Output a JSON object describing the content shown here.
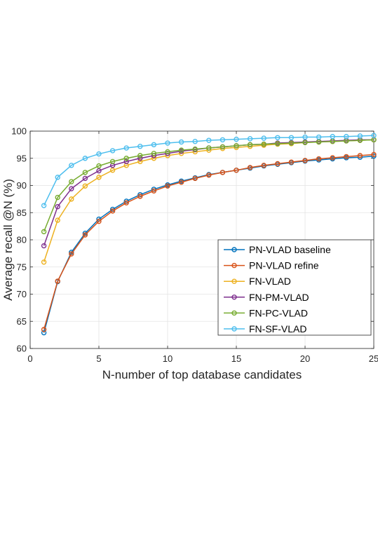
{
  "chart_data": {
    "type": "line",
    "xlabel": "N-number of top database candidates",
    "ylabel": "Average recall @N (%)",
    "xlim": [
      0,
      25
    ],
    "ylim": [
      60,
      100
    ],
    "xticks": [
      0,
      5,
      10,
      15,
      20,
      25
    ],
    "yticks": [
      60,
      65,
      70,
      75,
      80,
      85,
      90,
      95,
      100
    ],
    "grid": true,
    "legend_position": "lower-right",
    "marker": "circle",
    "x": [
      1,
      2,
      3,
      4,
      5,
      6,
      7,
      8,
      9,
      10,
      11,
      12,
      13,
      14,
      15,
      16,
      17,
      18,
      19,
      20,
      21,
      22,
      23,
      24,
      25
    ],
    "series": [
      {
        "name": "PN-VLAD baseline",
        "color": "#0072BD",
        "values": [
          62.9,
          72.3,
          77.7,
          81.2,
          83.8,
          85.6,
          87.1,
          88.3,
          89.3,
          90.1,
          90.8,
          91.4,
          92.0,
          92.4,
          92.8,
          93.2,
          93.6,
          93.9,
          94.2,
          94.5,
          94.7,
          94.9,
          95.1,
          95.2,
          95.4
        ]
      },
      {
        "name": "PN-VLAD refine",
        "color": "#D95319",
        "values": [
          63.5,
          72.4,
          77.4,
          80.9,
          83.4,
          85.3,
          86.8,
          88.0,
          89.0,
          89.9,
          90.6,
          91.3,
          91.9,
          92.4,
          92.8,
          93.3,
          93.7,
          94.0,
          94.3,
          94.6,
          94.9,
          95.1,
          95.3,
          95.5,
          95.7
        ]
      },
      {
        "name": "FN-VLAD",
        "color": "#EDB120",
        "values": [
          75.9,
          83.6,
          87.5,
          89.9,
          91.5,
          92.8,
          93.7,
          94.4,
          95.0,
          95.5,
          95.9,
          96.2,
          96.5,
          96.8,
          97.0,
          97.2,
          97.4,
          97.6,
          97.7,
          97.9,
          98.0,
          98.1,
          98.2,
          98.3,
          98.4
        ]
      },
      {
        "name": "FN-PM-VLAD",
        "color": "#7E2F8E",
        "values": [
          78.9,
          86.1,
          89.4,
          91.3,
          92.7,
          93.7,
          94.4,
          95.0,
          95.5,
          95.9,
          96.3,
          96.6,
          96.9,
          97.1,
          97.3,
          97.5,
          97.6,
          97.8,
          97.9,
          98.0,
          98.1,
          98.2,
          98.3,
          98.4,
          98.4
        ]
      },
      {
        "name": "FN-PC-VLAD",
        "color": "#77AC30",
        "values": [
          81.5,
          87.8,
          90.7,
          92.4,
          93.6,
          94.4,
          95.0,
          95.5,
          95.9,
          96.2,
          96.5,
          96.7,
          96.9,
          97.1,
          97.3,
          97.5,
          97.6,
          97.7,
          97.8,
          97.9,
          98.0,
          98.1,
          98.2,
          98.3,
          98.4
        ]
      },
      {
        "name": "FN-SF-VLAD",
        "color": "#4DBEEE",
        "values": [
          86.3,
          91.5,
          93.7,
          95.0,
          95.8,
          96.4,
          96.9,
          97.2,
          97.5,
          97.8,
          98.0,
          98.1,
          98.3,
          98.4,
          98.5,
          98.6,
          98.7,
          98.8,
          98.8,
          98.9,
          98.9,
          99.0,
          99.0,
          99.1,
          99.2
        ]
      }
    ]
  }
}
